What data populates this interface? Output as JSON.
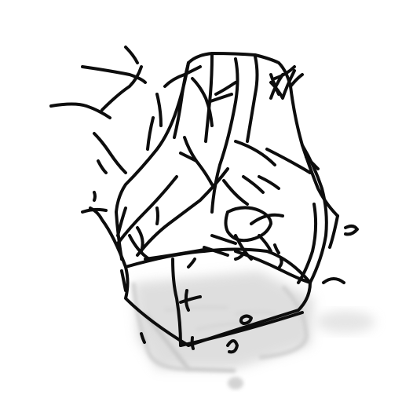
{
  "scene": {
    "subject": "wire-sketch-render",
    "background": "#ffffff",
    "stroke_color": "#0d0d0d",
    "shadow_color": "#bfbfbf"
  }
}
